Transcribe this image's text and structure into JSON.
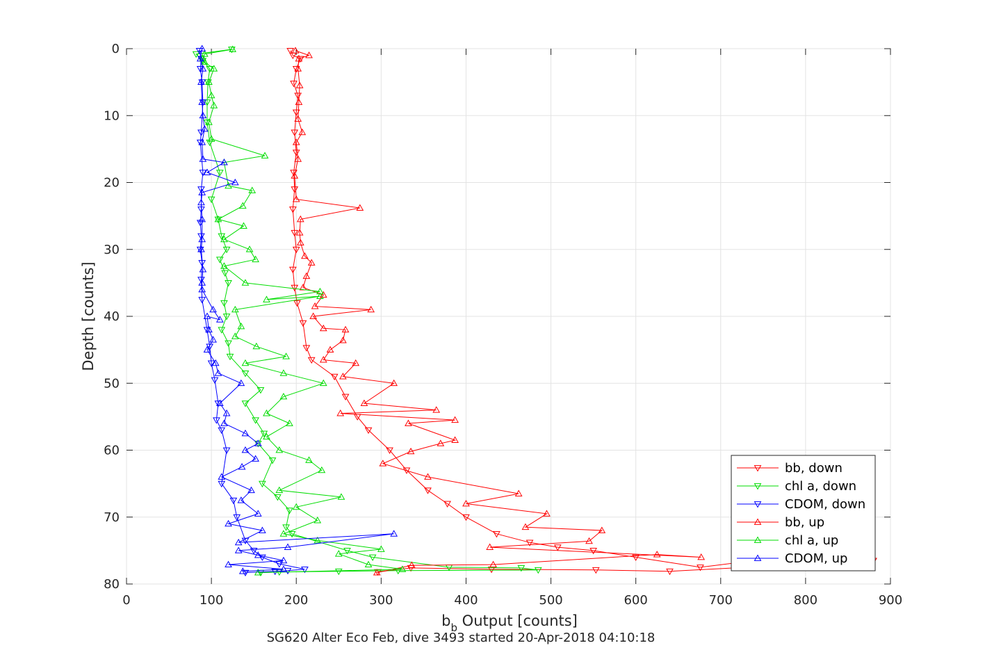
{
  "chart_data": {
    "type": "line",
    "xlabel": {
      "base": "b",
      "sub": "b",
      "rest": " Output [counts]"
    },
    "ylabel": "Depth [counts]",
    "caption": "SG620 Alter Eco Feb, dive 3493 started 20-Apr-2018 04:10:18",
    "xlim": [
      0,
      900
    ],
    "ylim": [
      0,
      80
    ],
    "y_reversed": true,
    "grid": true,
    "legend_position": "bottom-right",
    "x_ticks": [
      0,
      100,
      200,
      300,
      400,
      500,
      600,
      700,
      800,
      900
    ],
    "y_ticks": [
      0,
      10,
      20,
      30,
      40,
      50,
      60,
      70,
      80
    ],
    "series": [
      {
        "name": "bb, down",
        "color": "#ff0000",
        "marker": "triangle-down",
        "points": [
          [
            193,
            0.3
          ],
          [
            196,
            1
          ],
          [
            205,
            1.5
          ],
          [
            200,
            3
          ],
          [
            197,
            5.2
          ],
          [
            202,
            7
          ],
          [
            200,
            9.5
          ],
          [
            198,
            12.5
          ],
          [
            200,
            15.5
          ],
          [
            197,
            18.5
          ],
          [
            198,
            21
          ],
          [
            196,
            24
          ],
          [
            198,
            27.5
          ],
          [
            200,
            30
          ],
          [
            196,
            33
          ],
          [
            198,
            35.7
          ],
          [
            201,
            38
          ],
          [
            208,
            41
          ],
          [
            212,
            44.7
          ],
          [
            218,
            46.5
          ],
          [
            245,
            49
          ],
          [
            258,
            52
          ],
          [
            272,
            55
          ],
          [
            285,
            57
          ],
          [
            310,
            60
          ],
          [
            330,
            63
          ],
          [
            355,
            66
          ],
          [
            378,
            68
          ],
          [
            400,
            70
          ],
          [
            436,
            72.5
          ],
          [
            475,
            73.8
          ],
          [
            508,
            74.5
          ],
          [
            550,
            75
          ],
          [
            600,
            76
          ],
          [
            676,
            77.5
          ],
          [
            740,
            76.5
          ],
          [
            880,
            76.5
          ],
          [
            640,
            78.1
          ],
          [
            553,
            77.9
          ],
          [
            430,
            77.8
          ],
          [
            335,
            77.6
          ],
          [
            296,
            78.2
          ]
        ]
      },
      {
        "name": "chl a, down",
        "color": "#00dd00",
        "marker": "triangle-down",
        "points": [
          [
            124,
            0.1
          ],
          [
            82,
            0.8
          ],
          [
            90,
            1.8
          ],
          [
            98,
            3
          ],
          [
            96,
            5
          ],
          [
            95,
            8
          ],
          [
            95,
            11
          ],
          [
            98,
            14
          ],
          [
            110,
            18.5
          ],
          [
            100,
            22.5
          ],
          [
            108,
            25.5
          ],
          [
            112,
            28
          ],
          [
            118,
            30
          ],
          [
            110,
            31.5
          ],
          [
            116,
            33.5
          ],
          [
            120,
            35
          ],
          [
            115,
            38
          ],
          [
            118,
            40
          ],
          [
            112,
            42
          ],
          [
            120,
            44
          ],
          [
            122,
            46
          ],
          [
            140,
            48.5
          ],
          [
            158,
            51
          ],
          [
            140,
            53
          ],
          [
            152,
            55.5
          ],
          [
            162,
            57.5
          ],
          [
            155,
            59
          ],
          [
            172,
            61.5
          ],
          [
            160,
            65
          ],
          [
            178,
            67
          ],
          [
            192,
            69
          ],
          [
            188,
            71.5
          ],
          [
            195,
            72.5
          ],
          [
            260,
            75
          ],
          [
            290,
            76
          ],
          [
            380,
            77.5
          ],
          [
            465,
            77.6
          ],
          [
            485,
            77.9
          ],
          [
            320,
            78
          ],
          [
            250,
            78.1
          ],
          [
            180,
            78.2
          ],
          [
            158,
            78.3
          ]
        ]
      },
      {
        "name": "CDOM, down",
        "color": "#0000ff",
        "marker": "triangle-down",
        "points": [
          [
            86,
            0.3
          ],
          [
            88,
            1.5
          ],
          [
            87,
            3
          ],
          [
            89,
            5
          ],
          [
            90,
            8
          ],
          [
            88,
            12.5
          ],
          [
            87,
            14
          ],
          [
            90,
            18.5
          ],
          [
            88,
            21
          ],
          [
            88,
            24
          ],
          [
            87,
            26
          ],
          [
            88,
            28
          ],
          [
            87,
            30
          ],
          [
            89,
            32
          ],
          [
            88,
            34.5
          ],
          [
            89,
            37.5
          ],
          [
            95,
            42
          ],
          [
            98,
            44.5
          ],
          [
            100,
            47
          ],
          [
            104,
            49.5
          ],
          [
            108,
            53
          ],
          [
            106,
            55.5
          ],
          [
            112,
            57
          ],
          [
            118,
            60
          ],
          [
            112,
            65
          ],
          [
            126,
            67.5
          ],
          [
            130,
            70
          ],
          [
            140,
            73.5
          ],
          [
            150,
            75
          ],
          [
            160,
            76
          ],
          [
            180,
            77
          ],
          [
            210,
            77.8
          ],
          [
            190,
            78
          ],
          [
            175,
            78.1
          ],
          [
            140,
            78.3
          ]
        ]
      },
      {
        "name": "bb, up",
        "color": "#ff0000",
        "marker": "triangle-up",
        "points": [
          [
            295,
            78.3
          ],
          [
            336,
            77.2
          ],
          [
            432,
            77.1
          ],
          [
            625,
            75.6
          ],
          [
            677,
            76
          ],
          [
            428,
            74.5
          ],
          [
            545,
            73.6
          ],
          [
            560,
            72
          ],
          [
            470,
            71.5
          ],
          [
            495,
            69.5
          ],
          [
            400,
            68
          ],
          [
            462,
            66.5
          ],
          [
            355,
            64
          ],
          [
            302,
            62
          ],
          [
            335,
            60.2
          ],
          [
            370,
            59
          ],
          [
            387,
            58.5
          ],
          [
            332,
            56
          ],
          [
            387,
            55.5
          ],
          [
            252,
            54.5
          ],
          [
            365,
            54
          ],
          [
            280,
            53
          ],
          [
            315,
            50
          ],
          [
            255,
            49
          ],
          [
            270,
            47
          ],
          [
            232,
            46.5
          ],
          [
            240,
            45
          ],
          [
            255,
            43.6
          ],
          [
            258,
            42
          ],
          [
            232,
            41.8
          ],
          [
            220,
            40
          ],
          [
            288,
            39
          ],
          [
            222,
            38.5
          ],
          [
            232,
            36.8
          ],
          [
            208,
            35.7
          ],
          [
            212,
            34
          ],
          [
            218,
            32
          ],
          [
            210,
            31
          ],
          [
            205,
            29
          ],
          [
            204,
            27.5
          ],
          [
            205,
            25.5
          ],
          [
            275,
            23.8
          ],
          [
            200,
            22.5
          ],
          [
            198,
            19
          ],
          [
            202,
            16.5
          ],
          [
            200,
            14
          ],
          [
            207,
            12.5
          ],
          [
            202,
            10.5
          ],
          [
            203,
            8
          ],
          [
            204,
            5.5
          ],
          [
            202,
            3
          ],
          [
            203,
            1.5
          ],
          [
            215,
            1
          ],
          [
            199,
            0.3
          ]
        ]
      },
      {
        "name": "chl a, up",
        "color": "#00dd00",
        "marker": "triangle-up",
        "points": [
          [
            155,
            78.3
          ],
          [
            325,
            77.8
          ],
          [
            285,
            77.1
          ],
          [
            250,
            75.5
          ],
          [
            300,
            74.8
          ],
          [
            225,
            73.5
          ],
          [
            185,
            72.5
          ],
          [
            225,
            70.5
          ],
          [
            200,
            68.5
          ],
          [
            253,
            67
          ],
          [
            180,
            66
          ],
          [
            230,
            63
          ],
          [
            215,
            61.5
          ],
          [
            180,
            60
          ],
          [
            165,
            58
          ],
          [
            192,
            56
          ],
          [
            165,
            54.5
          ],
          [
            185,
            52
          ],
          [
            232,
            50
          ],
          [
            185,
            48.5
          ],
          [
            140,
            47
          ],
          [
            188,
            46
          ],
          [
            153,
            44.5
          ],
          [
            128,
            43
          ],
          [
            135,
            41.5
          ],
          [
            128,
            39
          ],
          [
            228,
            37
          ],
          [
            165,
            37.5
          ],
          [
            228,
            36.3
          ],
          [
            140,
            35
          ],
          [
            115,
            32.5
          ],
          [
            152,
            31.5
          ],
          [
            145,
            30
          ],
          [
            115,
            28.5
          ],
          [
            138,
            26.5
          ],
          [
            108,
            25.5
          ],
          [
            137,
            23.5
          ],
          [
            148,
            21.2
          ],
          [
            120,
            20.5
          ],
          [
            115,
            17
          ],
          [
            163,
            16
          ],
          [
            100,
            13.5
          ],
          [
            97,
            11
          ],
          [
            103,
            8.5
          ],
          [
            100,
            7
          ],
          [
            97,
            5
          ],
          [
            103,
            3
          ],
          [
            92,
            2
          ],
          [
            90,
            1.5
          ],
          [
            92,
            0.8
          ],
          [
            125,
            0.1
          ]
        ]
      },
      {
        "name": "CDOM, up",
        "color": "#0000ff",
        "marker": "triangle-up",
        "points": [
          [
            137,
            78.1
          ],
          [
            185,
            77.8
          ],
          [
            120,
            77.1
          ],
          [
            185,
            76.5
          ],
          [
            155,
            75.7
          ],
          [
            132,
            75
          ],
          [
            190,
            74.5
          ],
          [
            315,
            72.5
          ],
          [
            132,
            73.8
          ],
          [
            160,
            72
          ],
          [
            120,
            71
          ],
          [
            155,
            69.5
          ],
          [
            135,
            67.5
          ],
          [
            147,
            66
          ],
          [
            112,
            64
          ],
          [
            136,
            62.5
          ],
          [
            152,
            61.3
          ],
          [
            140,
            60
          ],
          [
            155,
            59
          ],
          [
            140,
            57.5
          ],
          [
            115,
            56
          ],
          [
            118,
            54.5
          ],
          [
            110,
            53
          ],
          [
            135,
            50
          ],
          [
            108,
            48.5
          ],
          [
            105,
            47
          ],
          [
            95,
            45
          ],
          [
            102,
            43.5
          ],
          [
            97,
            42
          ],
          [
            95,
            40
          ],
          [
            110,
            40.5
          ],
          [
            102,
            39
          ],
          [
            89,
            36
          ],
          [
            89,
            35
          ],
          [
            90,
            33
          ],
          [
            88,
            30
          ],
          [
            89,
            28.5
          ],
          [
            89,
            25.5
          ],
          [
            88,
            23
          ],
          [
            89,
            21.5
          ],
          [
            128,
            20
          ],
          [
            95,
            18.5
          ],
          [
            115,
            17
          ],
          [
            90,
            16.5
          ],
          [
            89,
            14
          ],
          [
            92,
            12
          ],
          [
            90,
            10
          ],
          [
            89,
            8
          ],
          [
            88,
            5
          ],
          [
            90,
            3
          ],
          [
            87,
            1.5
          ],
          [
            89,
            0
          ]
        ]
      }
    ]
  }
}
